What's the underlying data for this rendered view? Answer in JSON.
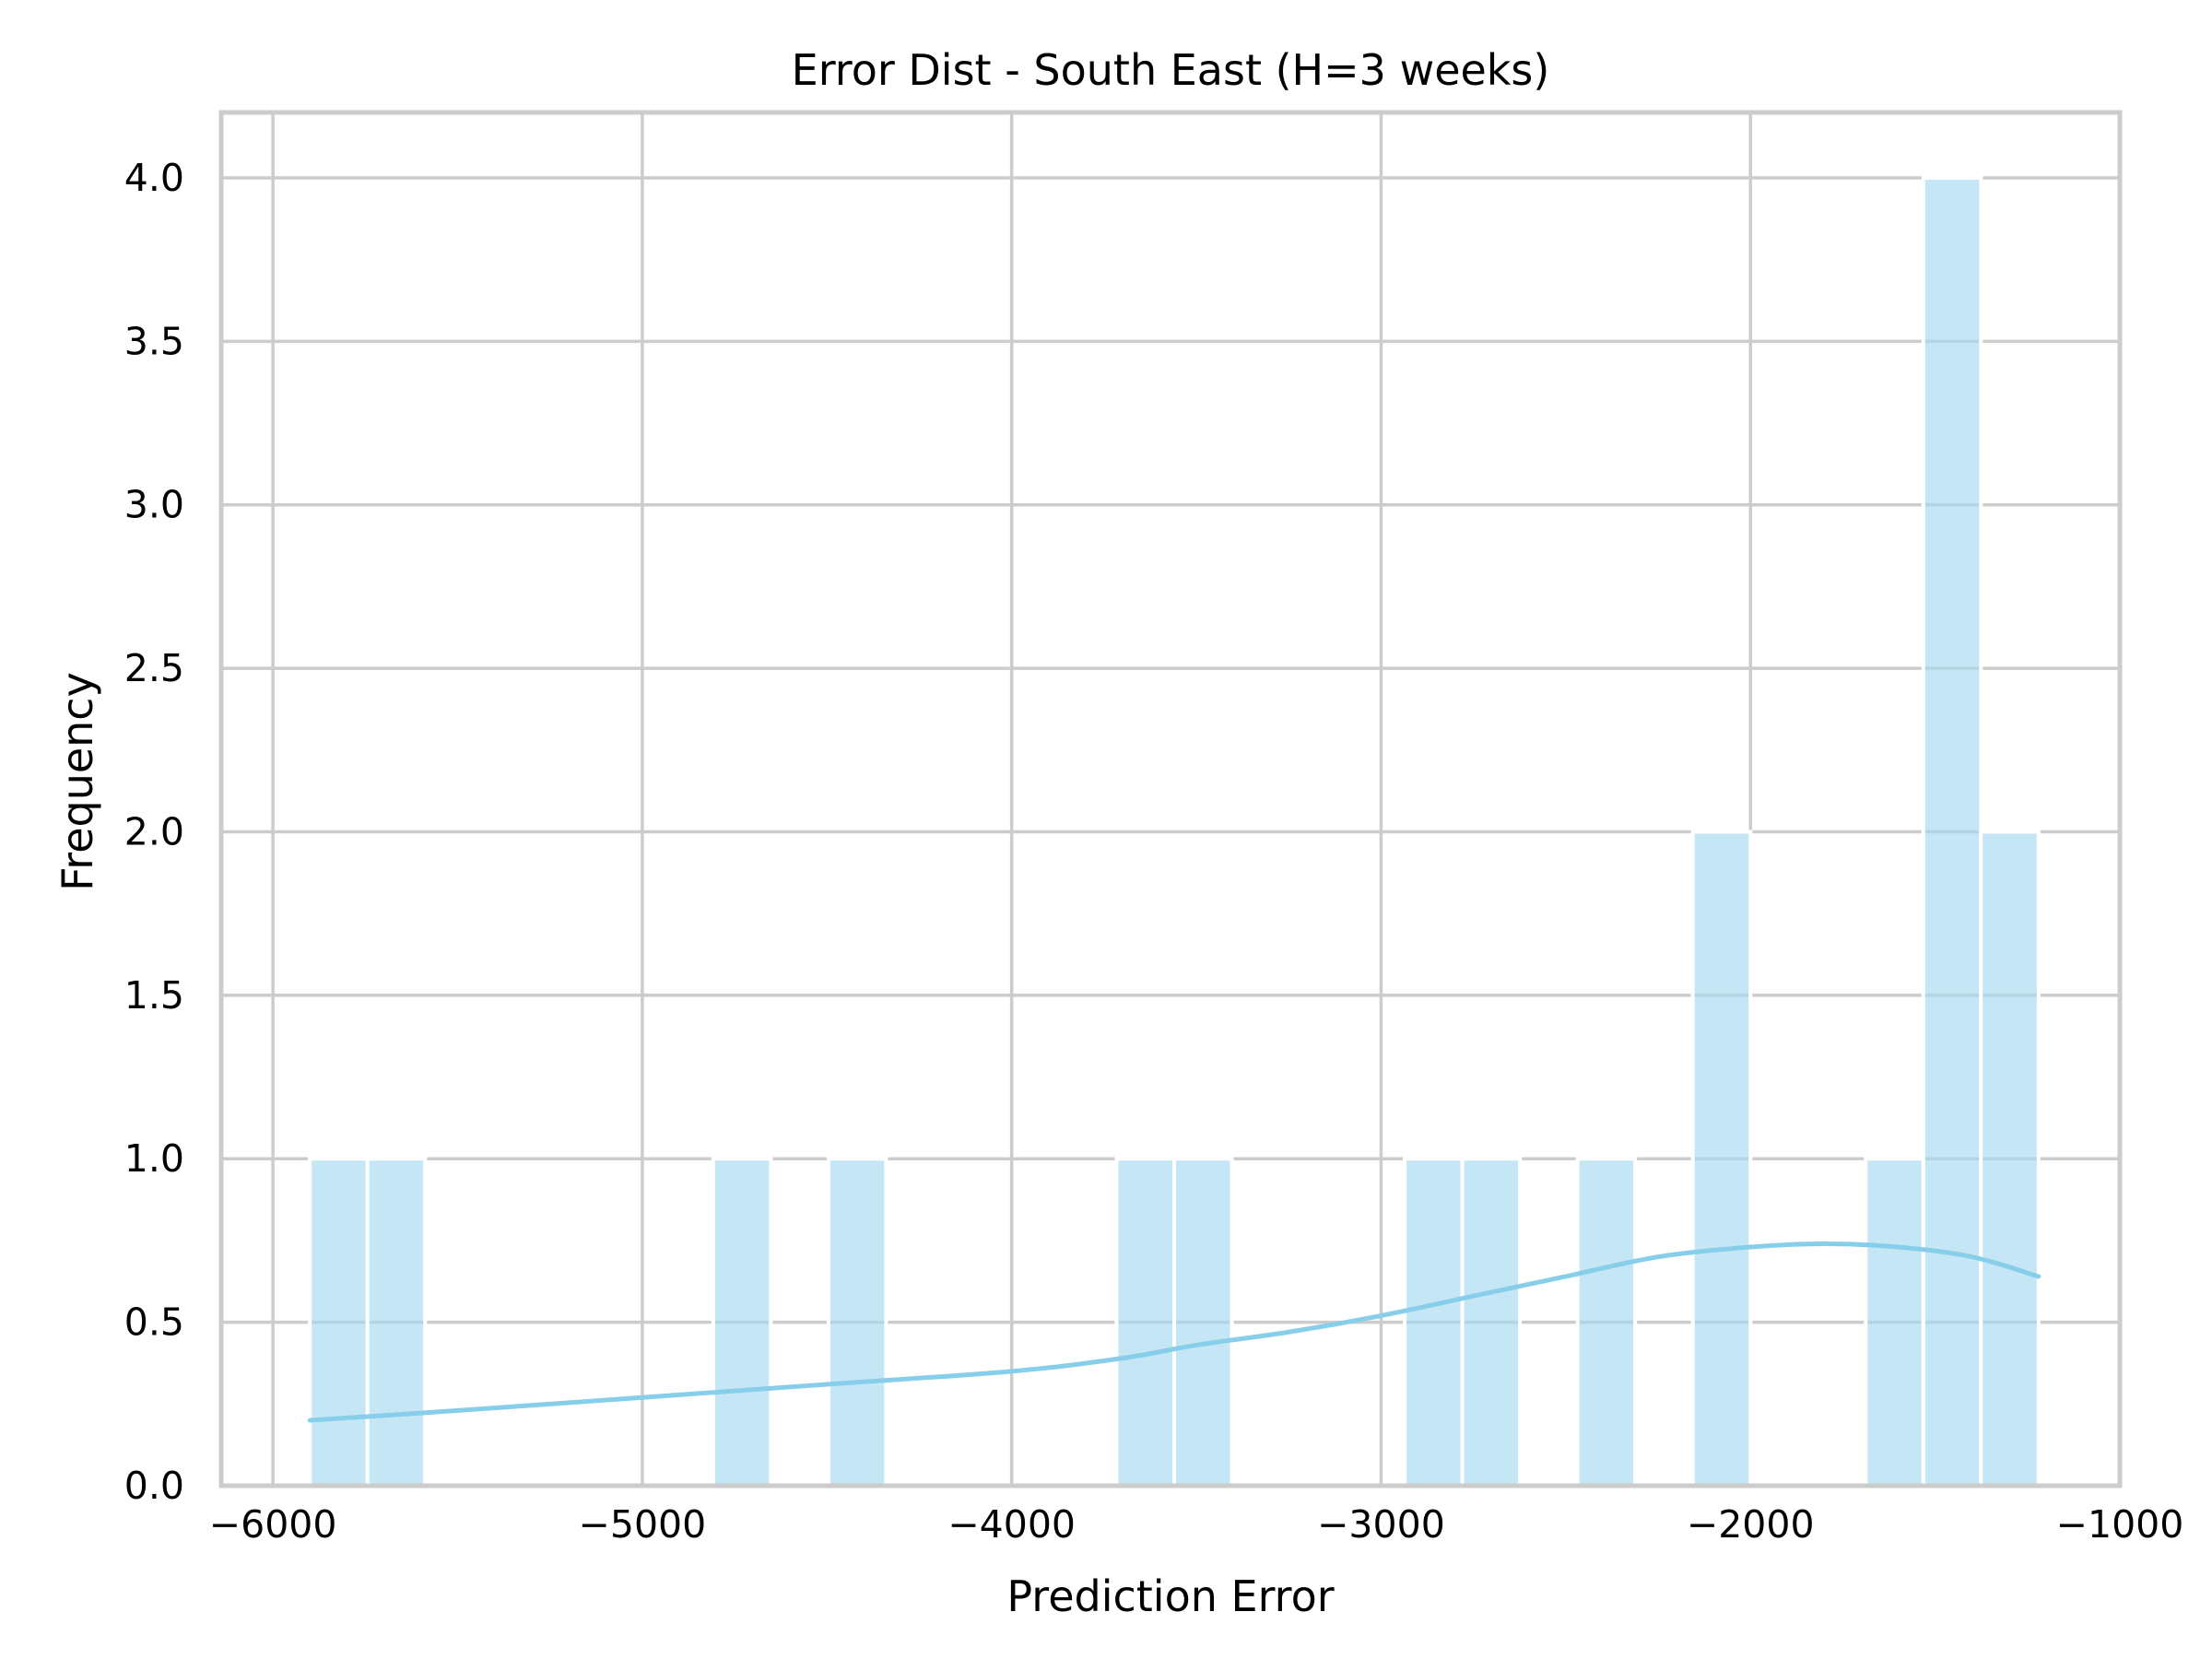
{
  "chart_data": {
    "type": "bar",
    "title": "Error Dist - South East (H=3 weeks)",
    "xlabel": "Prediction Error",
    "ylabel": "Frequency",
    "xlim": [
      -6140,
      -1000
    ],
    "ylim": [
      0,
      4.2
    ],
    "xticks": [
      -6000,
      -5000,
      -4000,
      -3000,
      -2000,
      -1000
    ],
    "xtick_labels": [
      "−6000",
      "−5000",
      "−4000",
      "−3000",
      "−2000",
      "−1000"
    ],
    "yticks": [
      0.0,
      0.5,
      1.0,
      1.5,
      2.0,
      2.5,
      3.0,
      3.5,
      4.0
    ],
    "ytick_labels": [
      "0.0",
      "0.5",
      "1.0",
      "1.5",
      "2.0",
      "2.5",
      "3.0",
      "3.5",
      "4.0"
    ],
    "grid": true,
    "bar_color": "#a6d8ee",
    "kde_color": "#87ceeb",
    "bins": [
      {
        "x0": -5900,
        "x1": -5744,
        "count": 1
      },
      {
        "x0": -5744,
        "x1": -5588,
        "count": 1
      },
      {
        "x0": -4808,
        "x1": -4652,
        "count": 1
      },
      {
        "x0": -4496,
        "x1": -4340,
        "count": 1
      },
      {
        "x0": -3716,
        "x1": -3560,
        "count": 1
      },
      {
        "x0": -3560,
        "x1": -3404,
        "count": 1
      },
      {
        "x0": -2936,
        "x1": -2780,
        "count": 1
      },
      {
        "x0": -2780,
        "x1": -2624,
        "count": 1
      },
      {
        "x0": -2468,
        "x1": -2312,
        "count": 1
      },
      {
        "x0": -2156,
        "x1": -2000,
        "count": 2
      },
      {
        "x0": -1688,
        "x1": -1532,
        "count": 1
      },
      {
        "x0": -1532,
        "x1": -1376,
        "count": 4
      },
      {
        "x0": -1376,
        "x1": -1220,
        "count": 2
      }
    ],
    "kde": {
      "x": [
        -5900,
        -5500,
        -5000,
        -4500,
        -4000,
        -3700,
        -3500,
        -3250,
        -3000,
        -2750,
        -2500,
        -2250,
        -2000,
        -1800,
        -1600,
        -1400,
        -1220
      ],
      "y": [
        0.2,
        0.23,
        0.27,
        0.31,
        0.35,
        0.39,
        0.43,
        0.47,
        0.52,
        0.58,
        0.64,
        0.7,
        0.73,
        0.74,
        0.73,
        0.7,
        0.64
      ]
    }
  }
}
